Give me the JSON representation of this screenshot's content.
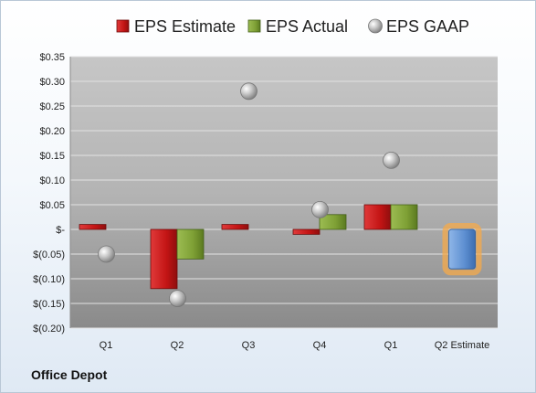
{
  "company": "Office Depot",
  "chart_data": {
    "type": "bar",
    "categories": [
      "Q1",
      "Q2",
      "Q3",
      "Q4",
      "Q1",
      "Q2 Estimate"
    ],
    "series": [
      {
        "name": "EPS Estimate",
        "color": "#cc1f1f",
        "values": [
          0.01,
          -0.12,
          0.01,
          -0.01,
          0.05,
          null
        ]
      },
      {
        "name": "EPS Actual",
        "color": "#7fa030",
        "values": [
          null,
          -0.06,
          null,
          0.03,
          0.05,
          null
        ]
      },
      {
        "name": "EPS GAAP",
        "color": "#a8a8a8",
        "marker": "circle",
        "values": [
          -0.05,
          -0.14,
          0.28,
          0.04,
          0.14,
          null
        ]
      }
    ],
    "forecast": {
      "category": "Q2 Estimate",
      "value": -0.08,
      "color": "#5b8fd0",
      "glow": "#f5a94a"
    },
    "yticks": [
      0.35,
      0.3,
      0.25,
      0.2,
      0.15,
      0.1,
      0.05,
      0,
      -0.05,
      -0.1,
      -0.15,
      -0.2
    ],
    "ytick_labels": [
      "$0.35",
      "$0.30",
      "$0.25",
      "$0.20",
      "$0.15",
      "$0.10",
      "$0.05",
      "$-",
      "$(0.05)",
      "$(0.10)",
      "$(0.15)",
      "$(0.20)"
    ],
    "ylim": [
      -0.2,
      0.35
    ],
    "grid": true,
    "legend_position": "top"
  }
}
